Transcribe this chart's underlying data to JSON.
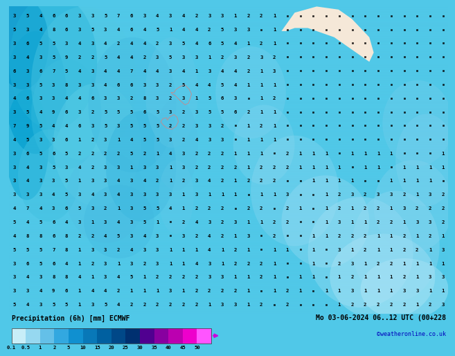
{
  "title_left": "Precipitation (6h) [mm] ECMWF",
  "title_right": "Mo 03-06-2024 06..12 UTC (00+228",
  "credit": "©weatheronline.co.uk",
  "colorbar_levels": [
    "0.1",
    "0.5",
    "1",
    "2",
    "5",
    "10",
    "15",
    "20",
    "25",
    "30",
    "35",
    "40",
    "45",
    "50"
  ],
  "colorbar_colors": [
    "#c8eef8",
    "#96d8f0",
    "#64c0e8",
    "#32a8e0",
    "#1090d0",
    "#0878b8",
    "#0060a0",
    "#004888",
    "#003070",
    "#500090",
    "#8800a0",
    "#bb00b0",
    "#ee00cc",
    "#ff55ff"
  ],
  "ocean_color": "#50c8e8",
  "land_color_nz": "#a8d8e8",
  "land_color_aus": "#f5e8d8",
  "precip_blob_colors": [
    "#0090c8",
    "#00a8d8",
    "#20b8e0",
    "#40c8e8",
    "#60d0f0",
    "#80d8f4",
    "#a0e0f8"
  ],
  "fig_bg": "#50c8e8",
  "bottom_bar_color": "#b8e8f8",
  "text_color_dark": "#000000",
  "text_color_blue": "#0000cc",
  "font_name": "monospace",
  "grid_rows": 22,
  "grid_cols": 34,
  "num_color_dark": "#000000",
  "num_color_zero": "#000000",
  "arrow_tip_color": "#cc00dd"
}
